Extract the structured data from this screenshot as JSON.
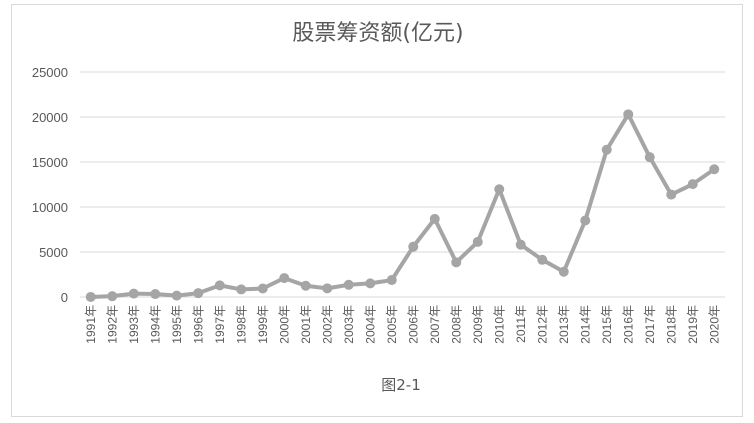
{
  "chart_data": {
    "type": "line",
    "title": "股票筹资额(亿元)",
    "caption": "图2-1",
    "categories": [
      "1991年",
      "1992年",
      "1993年",
      "1994年",
      "1995年",
      "1996年",
      "1997年",
      "1998年",
      "1999年",
      "2000年",
      "2001年",
      "2002年",
      "2003年",
      "2004年",
      "2005年",
      "2006年",
      "2007年",
      "2008年",
      "2009年",
      "2010年",
      "2011年",
      "2012年",
      "2013年",
      "2014年",
      "2015年",
      "2016年",
      "2017年",
      "2018年",
      "2019年",
      "2020年"
    ],
    "series": [
      {
        "name": "",
        "color": "#a5a5a5",
        "values": [
          5,
          94,
          375,
          327,
          150,
          425,
          1294,
          842,
          945,
          2103,
          1252,
          962,
          1358,
          1511,
          1883,
          5594,
          8680,
          3852,
          6125,
          11972,
          5814,
          4134,
          2803,
          8498,
          16362,
          20297,
          15536,
          11378,
          12539,
          14197
        ]
      }
    ],
    "ylim": [
      0,
      25000
    ],
    "yticks": [
      0,
      5000,
      10000,
      15000,
      20000,
      25000
    ],
    "grid": true,
    "legend": "none"
  }
}
